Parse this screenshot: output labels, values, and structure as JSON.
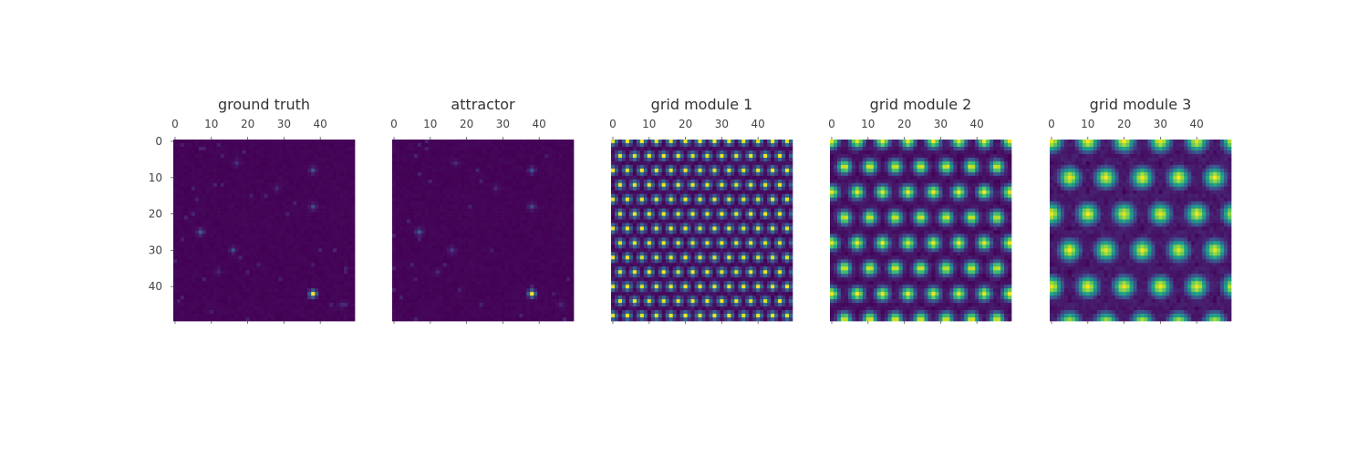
{
  "chart_data": [
    {
      "type": "heatmap",
      "title": "ground truth",
      "grid_size": 50,
      "x_ticks": [
        0,
        10,
        20,
        30,
        40
      ],
      "y_ticks": [
        0,
        10,
        20,
        30,
        40
      ],
      "xlim": [
        0,
        49
      ],
      "ylim": [
        49,
        0
      ],
      "x_axis_position": "top",
      "colormap": "viridis",
      "pattern": "sparse",
      "peaks": [
        [
          42,
          38,
          1.0
        ],
        [
          25,
          7,
          0.3
        ],
        [
          8,
          38,
          0.25
        ],
        [
          18,
          38,
          0.22
        ],
        [
          30,
          16,
          0.18
        ],
        [
          6,
          17,
          0.12
        ],
        [
          13,
          28,
          0.1
        ],
        [
          36,
          12,
          0.1
        ],
        [
          45,
          46,
          0.1
        ]
      ]
    },
    {
      "type": "heatmap",
      "title": "attractor",
      "grid_size": 50,
      "x_ticks": [
        0,
        10,
        20,
        30,
        40
      ],
      "y_ticks": [],
      "xlim": [
        0,
        49
      ],
      "ylim": [
        49,
        0
      ],
      "x_axis_position": "top",
      "colormap": "viridis",
      "pattern": "sparse",
      "peaks": [
        [
          42,
          38,
          1.0
        ],
        [
          25,
          7,
          0.28
        ],
        [
          8,
          38,
          0.24
        ],
        [
          18,
          38,
          0.22
        ],
        [
          30,
          16,
          0.17
        ],
        [
          6,
          17,
          0.11
        ],
        [
          13,
          28,
          0.1
        ],
        [
          36,
          12,
          0.1
        ],
        [
          45,
          46,
          0.1
        ]
      ]
    },
    {
      "type": "heatmap",
      "title": "grid module 1",
      "grid_size": 50,
      "x_ticks": [
        0,
        10,
        20,
        30,
        40
      ],
      "y_ticks": [],
      "xlim": [
        0,
        49
      ],
      "ylim": [
        49,
        0
      ],
      "x_axis_position": "top",
      "colormap": "viridis",
      "pattern": "periodic",
      "period": 4,
      "row_shift": 2,
      "sharpness": 1.6
    },
    {
      "type": "heatmap",
      "title": "grid module 2",
      "grid_size": 50,
      "x_ticks": [
        0,
        10,
        20,
        30,
        40
      ],
      "y_ticks": [],
      "xlim": [
        0,
        49
      ],
      "ylim": [
        49,
        0
      ],
      "x_axis_position": "top",
      "colormap": "viridis",
      "pattern": "periodic",
      "period": 7,
      "row_shift": 3.5,
      "sharpness": 3.5
    },
    {
      "type": "heatmap",
      "title": "grid module 3",
      "grid_size": 50,
      "x_ticks": [
        0,
        10,
        20,
        30,
        40
      ],
      "y_ticks": [],
      "xlim": [
        0,
        49
      ],
      "ylim": [
        49,
        0
      ],
      "x_axis_position": "top",
      "colormap": "viridis",
      "pattern": "periodic",
      "period": 10,
      "row_shift": 5,
      "sharpness": 5
    }
  ]
}
